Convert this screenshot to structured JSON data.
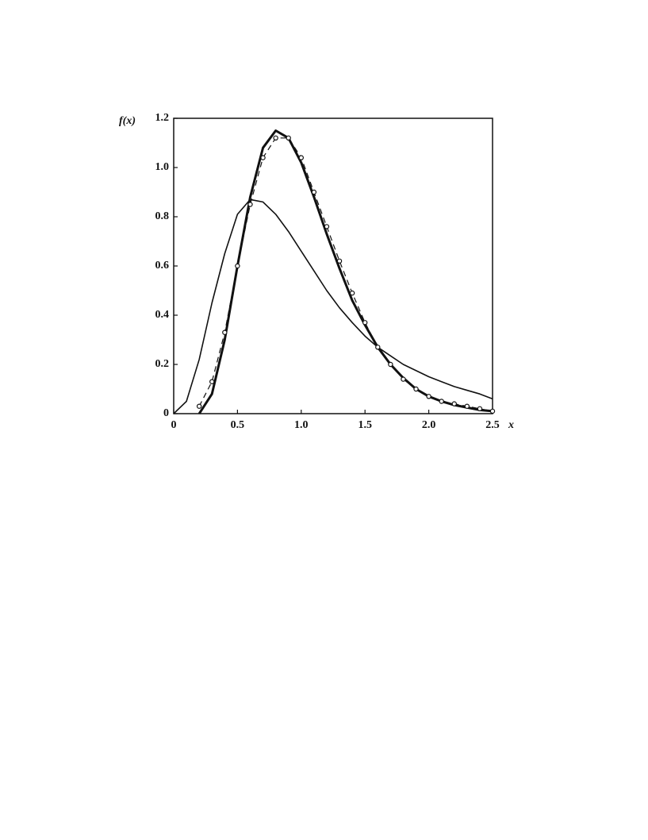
{
  "chart_data": {
    "type": "line",
    "ylabel": "f(x)",
    "xlabel": "x",
    "x": [
      0,
      0.1,
      0.2,
      0.3,
      0.4,
      0.5,
      0.6,
      0.7,
      0.8,
      0.9,
      1.0,
      1.1,
      1.2,
      1.3,
      1.4,
      1.5,
      1.6,
      1.7,
      1.8,
      1.9,
      2.0,
      2.1,
      2.2,
      2.3,
      2.4,
      2.5
    ],
    "series": [
      {
        "color": "#111111",
        "width": 1.6,
        "dash": false,
        "markers": false,
        "values": [
          0,
          0.05,
          0.22,
          0.45,
          0.65,
          0.81,
          0.87,
          0.86,
          0.81,
          0.74,
          0.66,
          0.58,
          0.5,
          0.43,
          0.37,
          0.315,
          0.27,
          0.235,
          0.2,
          0.175,
          0.15,
          0.13,
          0.11,
          0.095,
          0.08,
          0.06
        ]
      },
      {
        "color": "#111111",
        "width": 3,
        "dash": false,
        "markers": false,
        "values": [
          null,
          null,
          0,
          0.08,
          0.3,
          0.6,
          0.88,
          1.08,
          1.15,
          1.12,
          1.02,
          0.88,
          0.73,
          0.59,
          0.46,
          0.36,
          0.27,
          0.2,
          0.145,
          0.1,
          0.07,
          0.05,
          0.035,
          0.025,
          0.015,
          0.01
        ]
      },
      {
        "color": "#111111",
        "width": 1.2,
        "dash": true,
        "markers": true,
        "values": [
          null,
          null,
          0.03,
          0.13,
          0.33,
          0.6,
          0.85,
          1.04,
          1.12,
          1.12,
          1.04,
          0.9,
          0.76,
          0.62,
          0.49,
          0.37,
          0.27,
          0.2,
          0.14,
          0.1,
          0.07,
          0.05,
          0.04,
          0.03,
          0.02,
          0.01
        ]
      }
    ],
    "xlim": [
      0,
      2.5
    ],
    "xticks": [
      0,
      0.5,
      {
        "value": 1,
        "label": "1.0"
      },
      1.5,
      {
        "value": 2,
        "label": "2.0"
      },
      2.5
    ],
    "ylim": [
      0,
      1.2
    ],
    "yticks": [
      0,
      0.2,
      0.4,
      0.6,
      0.8,
      {
        "value": 1,
        "label": "1.0"
      },
      1.2
    ],
    "grid": false
  }
}
